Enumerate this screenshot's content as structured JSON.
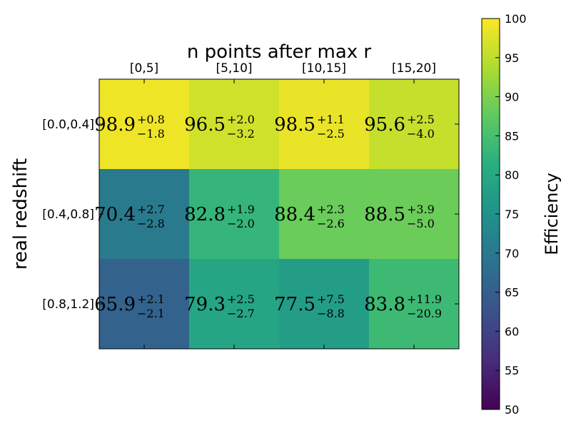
{
  "chart_data": {
    "type": "heatmap",
    "title": "n points after max r",
    "xlabel": "",
    "ylabel": "real redshift",
    "x_categories": [
      "[0,5]",
      "[5,10]",
      "[10,15]",
      "[15,20]"
    ],
    "y_categories": [
      "[0.0,0.4]",
      "[0.4,0.8]",
      "[0.8,1.2]"
    ],
    "x_axis_position": "top",
    "values": [
      [
        98.9,
        96.5,
        98.5,
        95.6
      ],
      [
        70.4,
        82.8,
        88.4,
        88.5
      ],
      [
        65.9,
        79.3,
        77.5,
        83.8
      ]
    ],
    "err_plus": [
      [
        0.8,
        2.0,
        1.1,
        2.5
      ],
      [
        2.7,
        1.9,
        2.3,
        3.9
      ],
      [
        2.1,
        2.5,
        7.5,
        11.9
      ]
    ],
    "err_minus": [
      [
        1.8,
        3.2,
        2.5,
        4.0
      ],
      [
        2.8,
        2.0,
        2.6,
        5.0
      ],
      [
        2.1,
        2.7,
        8.8,
        20.9
      ]
    ],
    "colorbar": {
      "label": "Efficiency",
      "range": [
        50,
        100
      ],
      "ticks": [
        50,
        55,
        60,
        65,
        70,
        75,
        80,
        85,
        90,
        95,
        100
      ],
      "colormap": "viridis"
    },
    "grid": false
  }
}
